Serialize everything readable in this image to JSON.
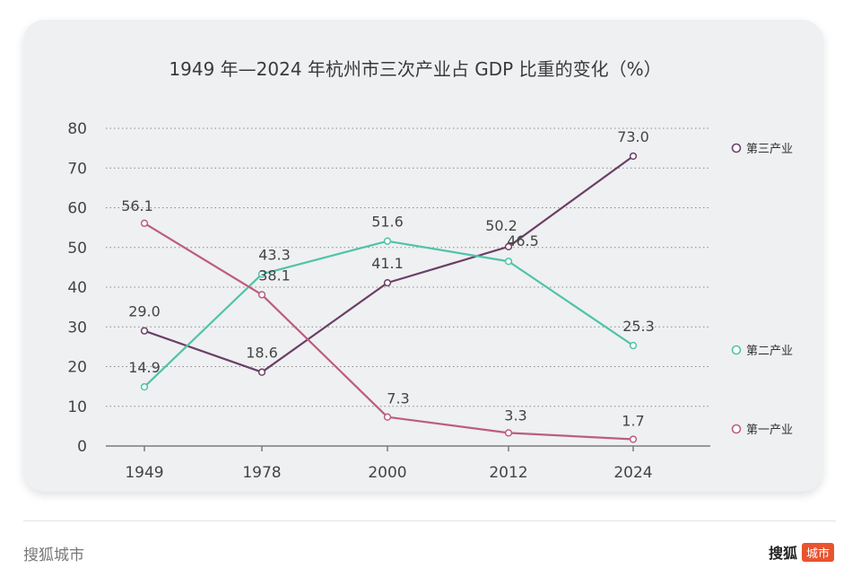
{
  "chart_data": {
    "type": "line",
    "title": "1949 年—2024 年杭州市三次产业占 GDP 比重的变化（%）",
    "categories": [
      "1949",
      "1978",
      "2000",
      "2012",
      "2024"
    ],
    "ylim": [
      0,
      80
    ],
    "yticks": [
      "0",
      "10",
      "20",
      "30",
      "40",
      "50",
      "60",
      "70",
      "80"
    ],
    "grid": true,
    "legend_position": "right",
    "series": [
      {
        "name": "第三产业",
        "color": "#6b3f66",
        "values": [
          29.0,
          18.6,
          41.1,
          50.2,
          73.0
        ],
        "labels": [
          "29.0",
          "18.6",
          "41.1",
          "50.2",
          "73.0"
        ]
      },
      {
        "name": "第二产业",
        "color": "#4fc3a8",
        "values": [
          14.9,
          43.3,
          51.6,
          46.5,
          25.3
        ],
        "labels": [
          "14.9",
          "43.3",
          "51.6",
          "46.5",
          "25.3"
        ]
      },
      {
        "name": "第一产业",
        "color": "#bd5d7d",
        "values": [
          56.1,
          38.1,
          7.3,
          3.3,
          1.7
        ],
        "labels": [
          "56.1",
          "38.1",
          "7.3",
          "3.3",
          "1.7"
        ]
      }
    ]
  },
  "footer": {
    "source": "搜狐城市",
    "logo_text": "搜狐",
    "logo_badge": "城市"
  }
}
